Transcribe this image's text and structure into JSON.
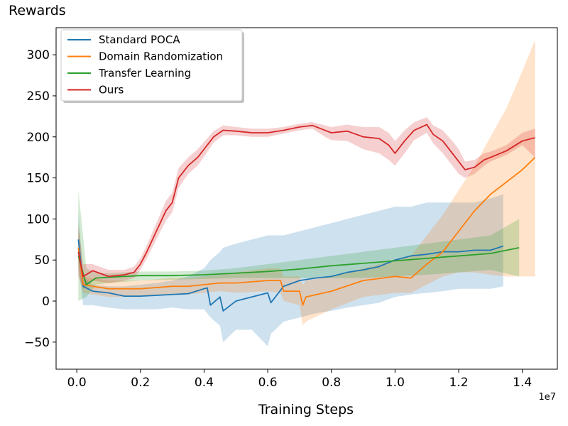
{
  "chart_data": {
    "type": "line",
    "title": "",
    "ylabel": "Rewards",
    "xlabel": "Training Steps",
    "x_offset_label": "1e7",
    "xlim": [
      -0.065,
      1.51
    ],
    "ylim": [
      -83,
      333
    ],
    "x_ticks": [
      0.0,
      0.2,
      0.4,
      0.6,
      0.8,
      1.0,
      1.2,
      1.4
    ],
    "x_tick_labels": [
      "0.0",
      "0.2",
      "0.4",
      "0.6",
      "0.8",
      "1.0",
      "1.2",
      "1.4"
    ],
    "y_ticks": [
      -50,
      0,
      50,
      100,
      150,
      200,
      250,
      300
    ],
    "y_tick_labels": [
      "−50",
      "0",
      "50",
      "100",
      "150",
      "200",
      "250",
      "300"
    ],
    "grid": false,
    "legend_position": "upper-left",
    "series": [
      {
        "name": "Standard POCA",
        "color": "#1f77b4",
        "x": [
          0.005,
          0.02,
          0.05,
          0.1,
          0.15,
          0.2,
          0.25,
          0.3,
          0.35,
          0.4,
          0.41,
          0.42,
          0.45,
          0.46,
          0.5,
          0.55,
          0.6,
          0.61,
          0.65,
          0.7,
          0.75,
          0.8,
          0.85,
          0.9,
          0.95,
          1.0,
          1.05,
          1.1,
          1.15,
          1.2,
          1.25,
          1.3,
          1.34
        ],
        "y": [
          75,
          18,
          12,
          10,
          6,
          6,
          7,
          8,
          9,
          15,
          16,
          -5,
          5,
          -12,
          0,
          5,
          10,
          -2,
          18,
          25,
          28,
          30,
          35,
          38,
          42,
          50,
          55,
          57,
          60,
          60,
          62,
          62,
          67
        ],
        "lower": [
          45,
          -5,
          -5,
          -8,
          -10,
          -10,
          -10,
          -8,
          -10,
          -10,
          -15,
          -20,
          -30,
          -50,
          -35,
          -35,
          -55,
          -40,
          -25,
          -20,
          -15,
          -12,
          -8,
          -5,
          -2,
          5,
          8,
          10,
          12,
          15,
          15,
          15,
          18
        ],
        "upper": [
          110,
          30,
          20,
          18,
          18,
          20,
          22,
          25,
          30,
          40,
          45,
          50,
          60,
          65,
          70,
          75,
          80,
          80,
          80,
          85,
          90,
          95,
          100,
          105,
          110,
          115,
          115,
          120,
          120,
          120,
          120,
          125,
          130
        ]
      },
      {
        "name": "Domain Randomization",
        "color": "#ff7f0e",
        "x": [
          0.005,
          0.02,
          0.05,
          0.1,
          0.2,
          0.3,
          0.35,
          0.4,
          0.45,
          0.5,
          0.6,
          0.64,
          0.65,
          0.7,
          0.71,
          0.72,
          0.8,
          0.9,
          1.0,
          1.05,
          1.1,
          1.15,
          1.2,
          1.25,
          1.3,
          1.35,
          1.4,
          1.44
        ],
        "y": [
          65,
          20,
          18,
          15,
          15,
          18,
          18,
          20,
          22,
          22,
          25,
          25,
          12,
          12,
          -5,
          5,
          12,
          25,
          30,
          28,
          45,
          60,
          85,
          110,
          130,
          145,
          160,
          175
        ],
        "lower": [
          40,
          10,
          8,
          5,
          5,
          8,
          8,
          10,
          12,
          10,
          12,
          10,
          0,
          -5,
          -30,
          -25,
          -10,
          5,
          10,
          10,
          20,
          30,
          35,
          35,
          32,
          30,
          30,
          30
        ],
        "upper": [
          95,
          30,
          28,
          25,
          25,
          28,
          28,
          30,
          32,
          35,
          40,
          40,
          30,
          30,
          20,
          25,
          30,
          40,
          50,
          55,
          80,
          105,
          135,
          165,
          200,
          235,
          280,
          318
        ]
      },
      {
        "name": "Transfer Learning",
        "color": "#2ca02c",
        "x": [
          0.005,
          0.03,
          0.06,
          0.1,
          0.2,
          0.3,
          0.4,
          0.5,
          0.6,
          0.7,
          0.8,
          0.9,
          1.0,
          1.1,
          1.2,
          1.3,
          1.39
        ],
        "y": [
          55,
          20,
          28,
          29,
          31,
          31,
          32,
          34,
          36,
          39,
          43,
          46,
          49,
          52,
          55,
          58,
          65
        ],
        "lower": [
          0,
          5,
          20,
          22,
          25,
          26,
          27,
          28,
          28,
          28,
          28,
          28,
          30,
          32,
          35,
          38,
          30
        ],
        "upper": [
          135,
          40,
          34,
          34,
          36,
          36,
          37,
          40,
          45,
          50,
          55,
          60,
          65,
          70,
          75,
          80,
          100
        ]
      },
      {
        "name": "Ours",
        "color": "#d62728",
        "x": [
          0.005,
          0.02,
          0.05,
          0.1,
          0.15,
          0.18,
          0.2,
          0.22,
          0.25,
          0.28,
          0.3,
          0.32,
          0.35,
          0.38,
          0.4,
          0.43,
          0.46,
          0.5,
          0.55,
          0.6,
          0.65,
          0.7,
          0.74,
          0.78,
          0.8,
          0.85,
          0.9,
          0.95,
          0.98,
          1.0,
          1.03,
          1.06,
          1.1,
          1.12,
          1.15,
          1.18,
          1.2,
          1.22,
          1.25,
          1.28,
          1.3,
          1.35,
          1.4,
          1.44
        ],
        "y": [
          60,
          30,
          37,
          30,
          32,
          35,
          45,
          60,
          85,
          110,
          120,
          150,
          165,
          175,
          185,
          200,
          208,
          207,
          205,
          205,
          208,
          212,
          214,
          208,
          205,
          207,
          200,
          198,
          190,
          180,
          195,
          208,
          215,
          203,
          195,
          180,
          170,
          160,
          163,
          172,
          175,
          183,
          195,
          199
        ],
        "lower": [
          30,
          15,
          25,
          22,
          25,
          28,
          38,
          52,
          75,
          98,
          108,
          138,
          155,
          165,
          176,
          193,
          202,
          202,
          200,
          200,
          204,
          208,
          210,
          200,
          196,
          195,
          185,
          180,
          172,
          165,
          180,
          196,
          205,
          192,
          180,
          165,
          155,
          150,
          155,
          165,
          170,
          178,
          190,
          175
        ],
        "upper": [
          90,
          45,
          45,
          38,
          38,
          42,
          52,
          68,
          95,
          122,
          132,
          162,
          175,
          185,
          194,
          207,
          214,
          212,
          210,
          210,
          212,
          216,
          218,
          214,
          212,
          215,
          212,
          212,
          205,
          195,
          208,
          218,
          224,
          214,
          208,
          195,
          185,
          170,
          172,
          180,
          182,
          190,
          205,
          210
        ]
      }
    ]
  }
}
